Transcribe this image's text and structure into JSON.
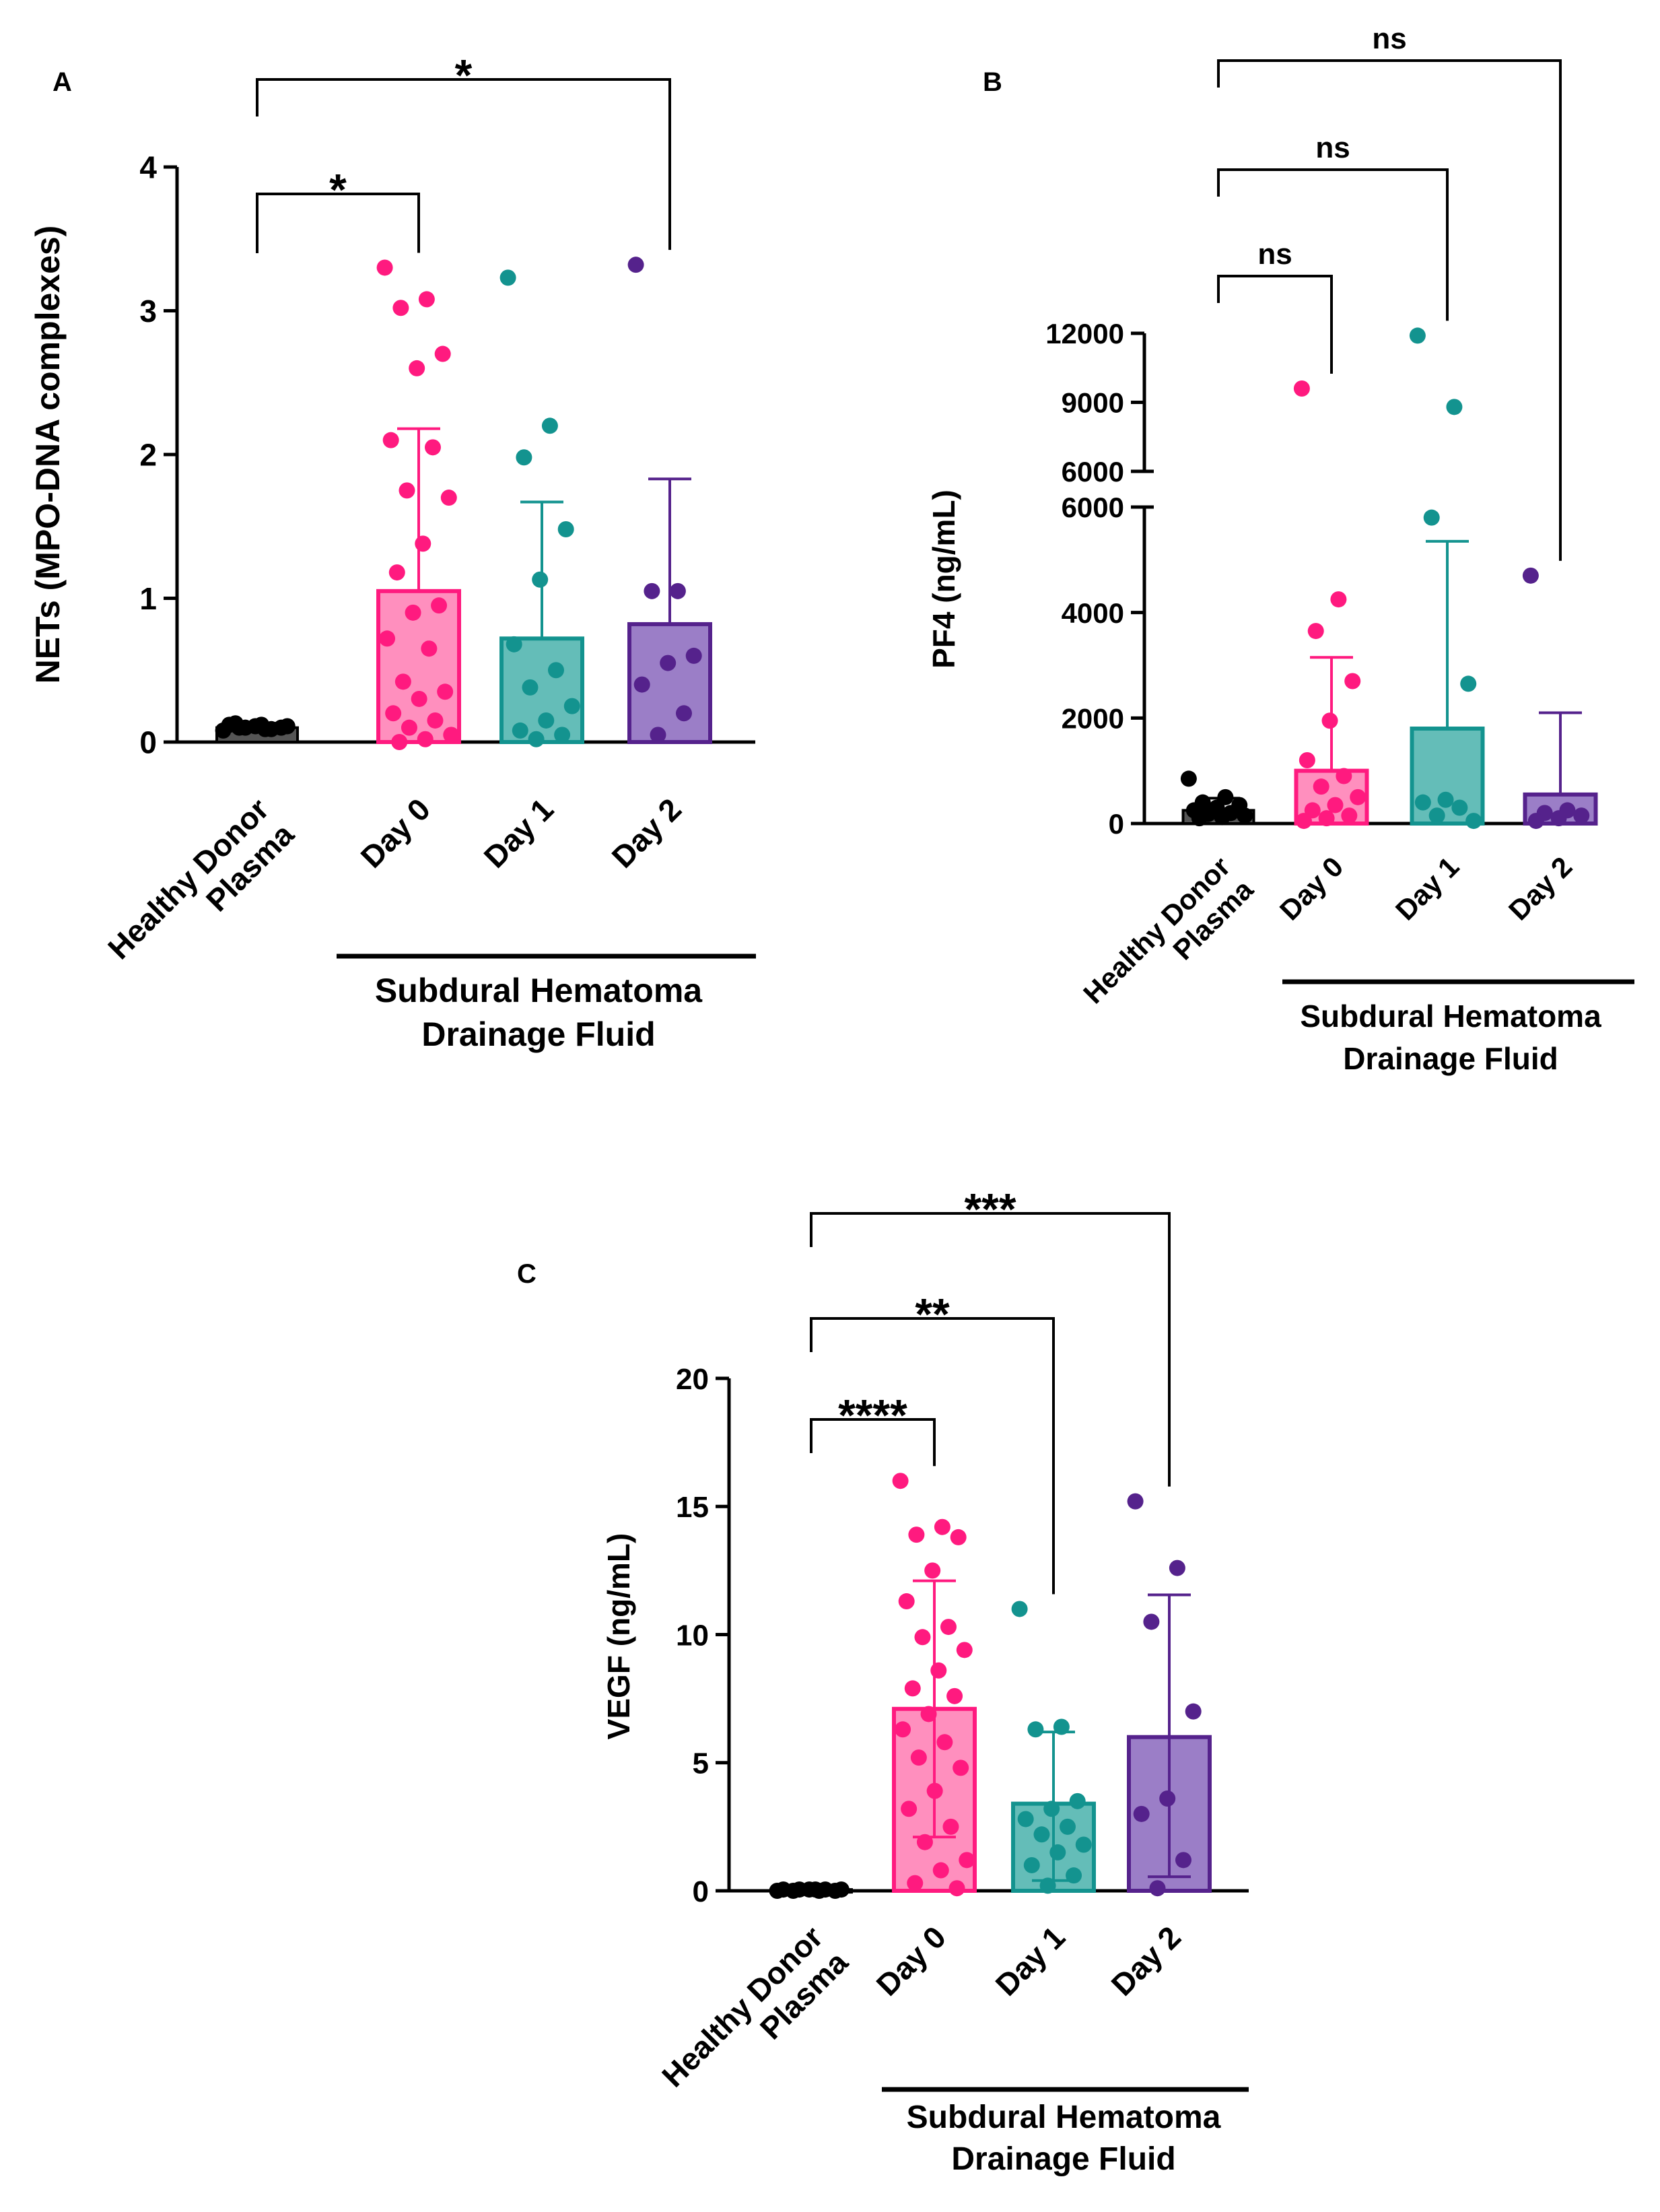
{
  "colors": {
    "healthy": "#000000",
    "day0": "#ff1a7f",
    "day0_fill": "#ff8fbe",
    "day1": "#13938f",
    "day1_fill": "#64bdb8",
    "day2": "#55228c",
    "day2_fill": "#9b7ec7",
    "axis": "#000000"
  },
  "chart_data": [
    {
      "panel": "A",
      "type": "bar",
      "ylabel": "NETs (MPO-DNA complexes)",
      "ylim": [
        0,
        4
      ],
      "yticks": [
        "0",
        "1",
        "2",
        "3",
        "4"
      ],
      "categories": [
        "Healthy Donor Plasma",
        "Day 0",
        "Day 1",
        "Day 2"
      ],
      "category_lines": [
        [
          "Healthy Donor",
          "Plasma"
        ],
        [
          "Day 0"
        ],
        [
          "Day 1"
        ],
        [
          "Day 2"
        ]
      ],
      "group_label": [
        "Subdural Hematoma",
        "Drainage Fluid"
      ],
      "means": [
        0.1,
        1.05,
        0.72,
        0.82
      ],
      "sd_upper": [
        0.13,
        2.18,
        1.67,
        1.83
      ],
      "points": [
        [
          0.08,
          0.09,
          0.1,
          0.1,
          0.11,
          0.12,
          0.09,
          0.1,
          0.11,
          0.12,
          0.13
        ],
        [
          3.3,
          3.08,
          3.02,
          2.7,
          2.6,
          2.1,
          2.05,
          1.75,
          1.7,
          1.38,
          1.18,
          0.95,
          0.9,
          0.72,
          0.65,
          0.42,
          0.35,
          0.3,
          0.2,
          0.15,
          0.1,
          0.05,
          0.02,
          0.0
        ],
        [
          3.23,
          2.2,
          1.98,
          1.48,
          1.13,
          0.68,
          0.5,
          0.38,
          0.25,
          0.15,
          0.08,
          0.05,
          0.02
        ],
        [
          3.32,
          1.05,
          1.05,
          0.6,
          0.55,
          0.4,
          0.2,
          0.05
        ]
      ],
      "comparisons": [
        {
          "from": 0,
          "to": 1,
          "label": "*"
        },
        {
          "from": 0,
          "to": 3,
          "label": "*"
        }
      ]
    },
    {
      "panel": "B",
      "type": "bar",
      "ylabel": "PF4 (ng/mL)",
      "ylim_lower": [
        0,
        6000
      ],
      "ylim_upper": [
        6000,
        12000
      ],
      "yticks_lower": [
        "0",
        "2000",
        "4000",
        "6000"
      ],
      "yticks_upper": [
        "6000",
        "9000",
        "12000"
      ],
      "categories": [
        "Healthy Donor Plasma",
        "Day 0",
        "Day 1",
        "Day 2"
      ],
      "category_lines": [
        [
          "Healthy Donor",
          "Plasma"
        ],
        [
          "Day 0"
        ],
        [
          "Day 1"
        ],
        [
          "Day 2"
        ]
      ],
      "group_label": [
        "Subdural Hematoma",
        "Drainage Fluid"
      ],
      "means": [
        250,
        1000,
        1800,
        550
      ],
      "sd_upper": [
        480,
        3150,
        5350,
        2100
      ],
      "points": [
        [
          850,
          500,
          400,
          350,
          300,
          250,
          200,
          180,
          150,
          120,
          100
        ],
        [
          9600,
          4250,
          3650,
          2700,
          1950,
          1200,
          900,
          700,
          500,
          350,
          250,
          150,
          100,
          50
        ],
        [
          11900,
          8800,
          5800,
          2650,
          450,
          400,
          300,
          150,
          50
        ],
        [
          4700,
          250,
          200,
          150,
          100,
          50
        ]
      ],
      "comparisons": [
        {
          "from": 0,
          "to": 1,
          "label": "ns"
        },
        {
          "from": 0,
          "to": 2,
          "label": "ns"
        },
        {
          "from": 0,
          "to": 3,
          "label": "ns"
        }
      ]
    },
    {
      "panel": "C",
      "type": "bar",
      "ylabel": "VEGF (ng/mL)",
      "ylim": [
        0,
        20
      ],
      "yticks": [
        "0",
        "5",
        "10",
        "15",
        "20"
      ],
      "categories": [
        "Healthy Donor Plasma",
        "Day 0",
        "Day 1",
        "Day 2"
      ],
      "category_lines": [
        [
          "Healthy Donor",
          "Plasma"
        ],
        [
          "Day 0"
        ],
        [
          "Day 1"
        ],
        [
          "Day 2"
        ]
      ],
      "group_label": [
        "Subdural Hematoma",
        "Drainage Fluid"
      ],
      "means": [
        0.05,
        7.1,
        3.4,
        6.0
      ],
      "sd_lower": [
        0.0,
        2.1,
        0.4,
        0.55
      ],
      "sd_upper": [
        0.1,
        12.1,
        6.2,
        11.55
      ],
      "points": [
        [
          0.0,
          0.0,
          0.0,
          0.0,
          0.05,
          0.05,
          0.05,
          0.05,
          0.05,
          0.05
        ],
        [
          16.0,
          14.2,
          13.9,
          13.8,
          12.5,
          11.3,
          10.3,
          9.9,
          9.4,
          8.6,
          7.9,
          7.6,
          6.9,
          6.3,
          5.8,
          5.2,
          4.8,
          3.9,
          3.2,
          2.5,
          1.9,
          1.2,
          0.8,
          0.3,
          0.1
        ],
        [
          11.0,
          6.4,
          6.3,
          3.5,
          3.2,
          2.8,
          2.5,
          2.2,
          1.8,
          1.5,
          1.0,
          0.6,
          0.2
        ],
        [
          15.2,
          12.6,
          10.5,
          7.0,
          3.6,
          3.0,
          1.2,
          0.1
        ]
      ],
      "comparisons": [
        {
          "from": 0,
          "to": 1,
          "label": "****"
        },
        {
          "from": 0,
          "to": 2,
          "label": "**"
        },
        {
          "from": 0,
          "to": 3,
          "label": "***"
        }
      ]
    }
  ]
}
